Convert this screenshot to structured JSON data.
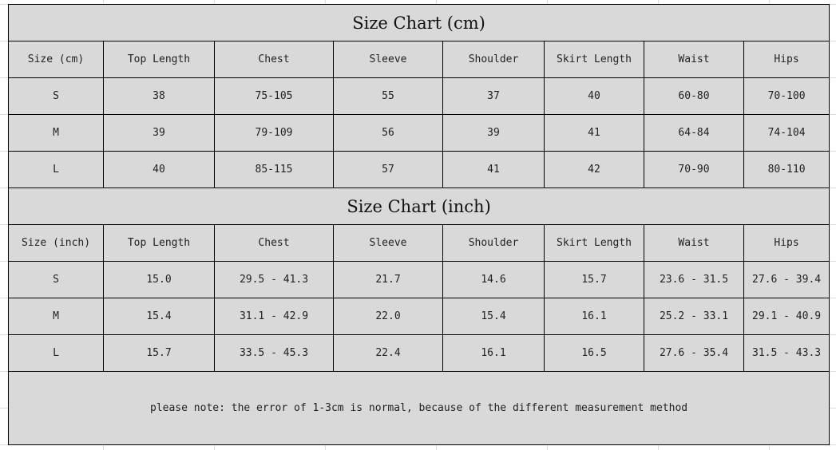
{
  "cm_chart": {
    "title": "Size Chart (cm)",
    "headers": [
      "Size (cm)",
      "Top Length",
      "Chest",
      "Sleeve",
      "Shoulder",
      "Skirt Length",
      "Waist",
      "Hips"
    ],
    "rows": [
      [
        "S",
        "38",
        "75-105",
        "55",
        "37",
        "40",
        "60-80",
        "70-100"
      ],
      [
        "M",
        "39",
        "79-109",
        "56",
        "39",
        "41",
        "64-84",
        "74-104"
      ],
      [
        "L",
        "40",
        "85-115",
        "57",
        "41",
        "42",
        "70-90",
        "80-110"
      ]
    ]
  },
  "inch_chart": {
    "title": "Size Chart (inch)",
    "headers": [
      "Size (inch)",
      "Top Length",
      "Chest",
      "Sleeve",
      "Shoulder",
      "Skirt Length",
      "Waist",
      "Hips"
    ],
    "rows": [
      [
        "S",
        "15.0",
        "29.5 - 41.3",
        "21.7",
        "14.6",
        "15.7",
        "23.6 - 31.5",
        "27.6 - 39.4"
      ],
      [
        "M",
        "15.4",
        "31.1 - 42.9",
        "22.0",
        "15.4",
        "16.1",
        "25.2 - 33.1",
        "29.1 - 40.9"
      ],
      [
        "L",
        "15.7",
        "33.5 - 45.3",
        "22.4",
        "16.1",
        "16.5",
        "27.6 - 35.4",
        "31.5 - 43.3"
      ]
    ]
  },
  "note": "please note: the error of 1-3cm is normal, because of the different measurement method",
  "colors": {
    "cell_fill": "#d9d9d9",
    "border": "#000000"
  }
}
